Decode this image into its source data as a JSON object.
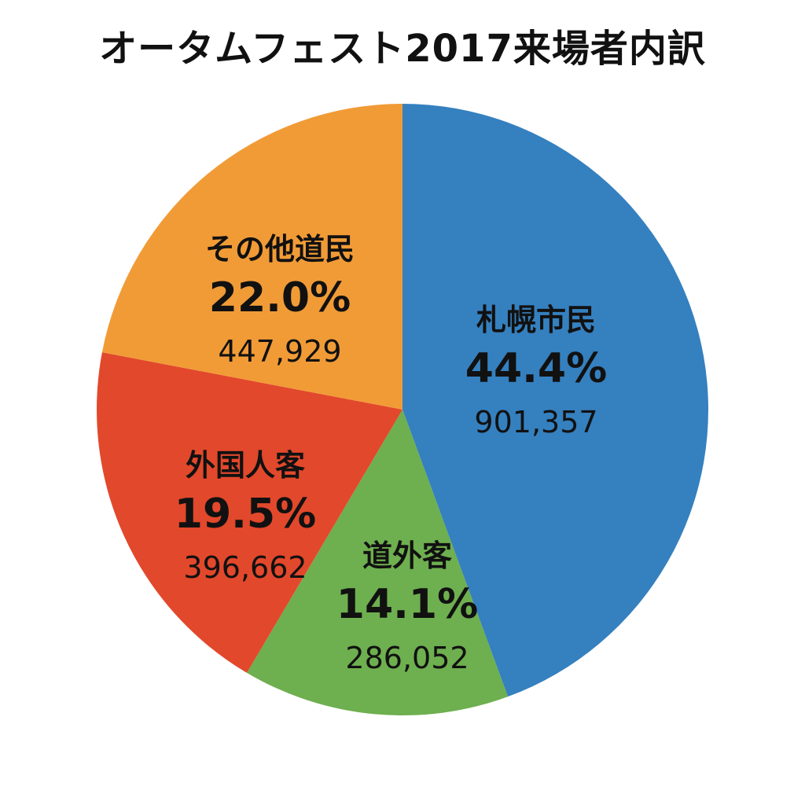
{
  "chart_data": {
    "type": "pie",
    "title": "オータムフェスト2017来場者内訳",
    "slices": [
      {
        "name": "札幌市民",
        "percent": 44.4,
        "percent_label": "44.4%",
        "value": 901357,
        "value_label": "901,357",
        "color": "#3580BF"
      },
      {
        "name": "道外客",
        "percent": 14.1,
        "percent_label": "14.1%",
        "value": 286052,
        "value_label": "286,052",
        "color": "#6EAF4F"
      },
      {
        "name": "外国人客",
        "percent": 19.5,
        "percent_label": "19.5%",
        "value": 396662,
        "value_label": "396,662",
        "color": "#E2482B"
      },
      {
        "name": "その他道民",
        "percent": 22.0,
        "percent_label": "22.0%",
        "value": 447929,
        "value_label": "447,929",
        "color": "#F19B37"
      }
    ],
    "start_angle_deg": 0,
    "direction": "clockwise",
    "legend": "none"
  }
}
